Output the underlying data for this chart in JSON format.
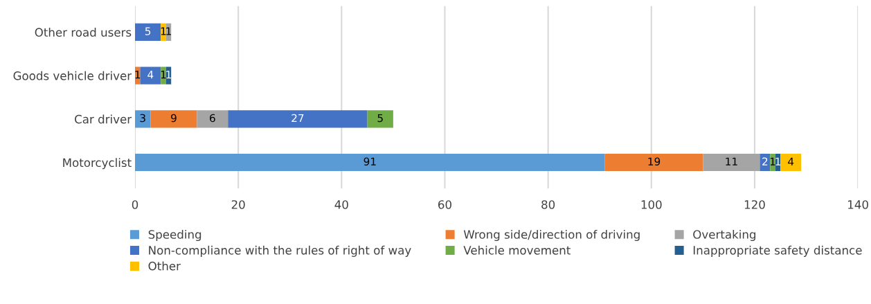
{
  "chart_data": {
    "type": "bar",
    "orientation": "horizontal",
    "stacked": true,
    "data_labels": true,
    "grid": "x",
    "legend": "bottom",
    "categories": [
      "Other road users",
      "Goods vehicle driver",
      "Car driver",
      "Motorcyclist"
    ],
    "series": [
      {
        "name": "Speeding",
        "color": "#5b9bd5",
        "values": [
          null,
          null,
          3,
          91
        ]
      },
      {
        "name": "Wrong side/direction of driving",
        "color": "#ed7d31",
        "values": [
          null,
          1,
          9,
          19
        ]
      },
      {
        "name": "Overtaking",
        "color": "#a5a5a5",
        "values": [
          null,
          null,
          6,
          11
        ]
      },
      {
        "name": "Non-compliance with the rules of right of way",
        "color": "#4472c4",
        "values": [
          5,
          4,
          27,
          2
        ]
      },
      {
        "name": "Vehicle movement",
        "color": "#70ad47",
        "values": [
          null,
          1,
          5,
          1
        ]
      },
      {
        "name": "Inappropriate safety distance",
        "color": "#255e91",
        "values": [
          null,
          1,
          null,
          1
        ]
      },
      {
        "name": "Other",
        "color": "#ffc000",
        "values": [
          1,
          null,
          null,
          4
        ]
      },
      {
        "color": "#a5a5a5",
        "values": [
          1,
          null,
          null,
          null
        ]
      }
    ],
    "xlim": [
      0,
      140
    ],
    "xticks": [
      0,
      20,
      40,
      60,
      80,
      100,
      120,
      140
    ]
  }
}
